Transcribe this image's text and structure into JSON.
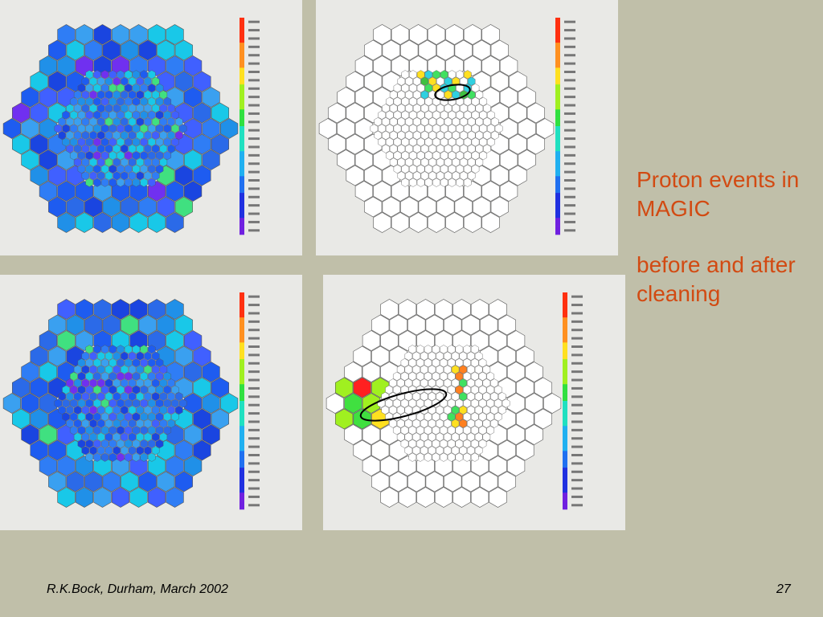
{
  "slide": {
    "title": "Proton events in MAGIC",
    "subtitle": "before and after cleaning",
    "footer": "R.K.Bock, Durham, March 2002",
    "page_number": "27"
  }
}
